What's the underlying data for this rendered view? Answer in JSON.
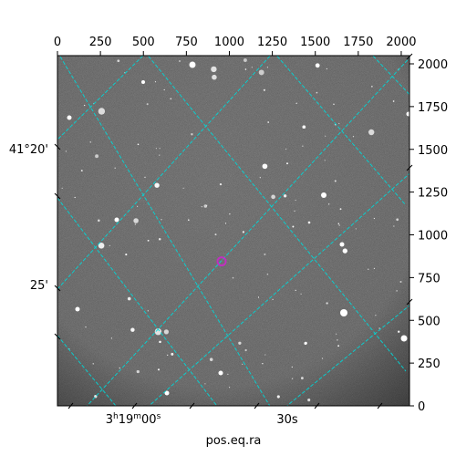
{
  "chart_data": {
    "type": "image",
    "description_free": true,
    "image_extent": {
      "x": [
        0,
        2048
      ],
      "y": [
        0,
        2048
      ]
    },
    "pixel_axes": {
      "top_ticks": [
        {
          "value": 0,
          "label": "0"
        },
        {
          "value": 250,
          "label": "250"
        },
        {
          "value": 500,
          "label": "500"
        },
        {
          "value": 750,
          "label": "750"
        },
        {
          "value": 1000,
          "label": "1000"
        },
        {
          "value": 1250,
          "label": "1250"
        },
        {
          "value": 1500,
          "label": "1500"
        },
        {
          "value": 1750,
          "label": "1750"
        },
        {
          "value": 2000,
          "label": "2000"
        }
      ],
      "right_ticks": [
        {
          "value": 0,
          "label": "0"
        },
        {
          "value": 250,
          "label": "250"
        },
        {
          "value": 500,
          "label": "500"
        },
        {
          "value": 750,
          "label": "750"
        },
        {
          "value": 1000,
          "label": "1000"
        },
        {
          "value": 1250,
          "label": "1250"
        },
        {
          "value": 1500,
          "label": "1500"
        },
        {
          "value": 1750,
          "label": "1750"
        },
        {
          "value": 2000,
          "label": "2000"
        }
      ]
    },
    "world_axes": {
      "dec_labels": [
        {
          "label": "41°20'"
        },
        {
          "label": "25'"
        }
      ],
      "ra_labels": [
        {
          "label_h": "3",
          "label_h_unit": "h",
          "label_m": "19",
          "label_m_unit": "m",
          "label_s": "00",
          "label_s_unit": "s"
        },
        {
          "label": "30s"
        }
      ],
      "xlabel": "pos.eq.ra",
      "ylabel": ""
    },
    "grid": true,
    "grid_color": "#00d8d8",
    "marker": {
      "x": 955,
      "y": 845,
      "color": "#c030c0",
      "shape": "circle"
    }
  }
}
